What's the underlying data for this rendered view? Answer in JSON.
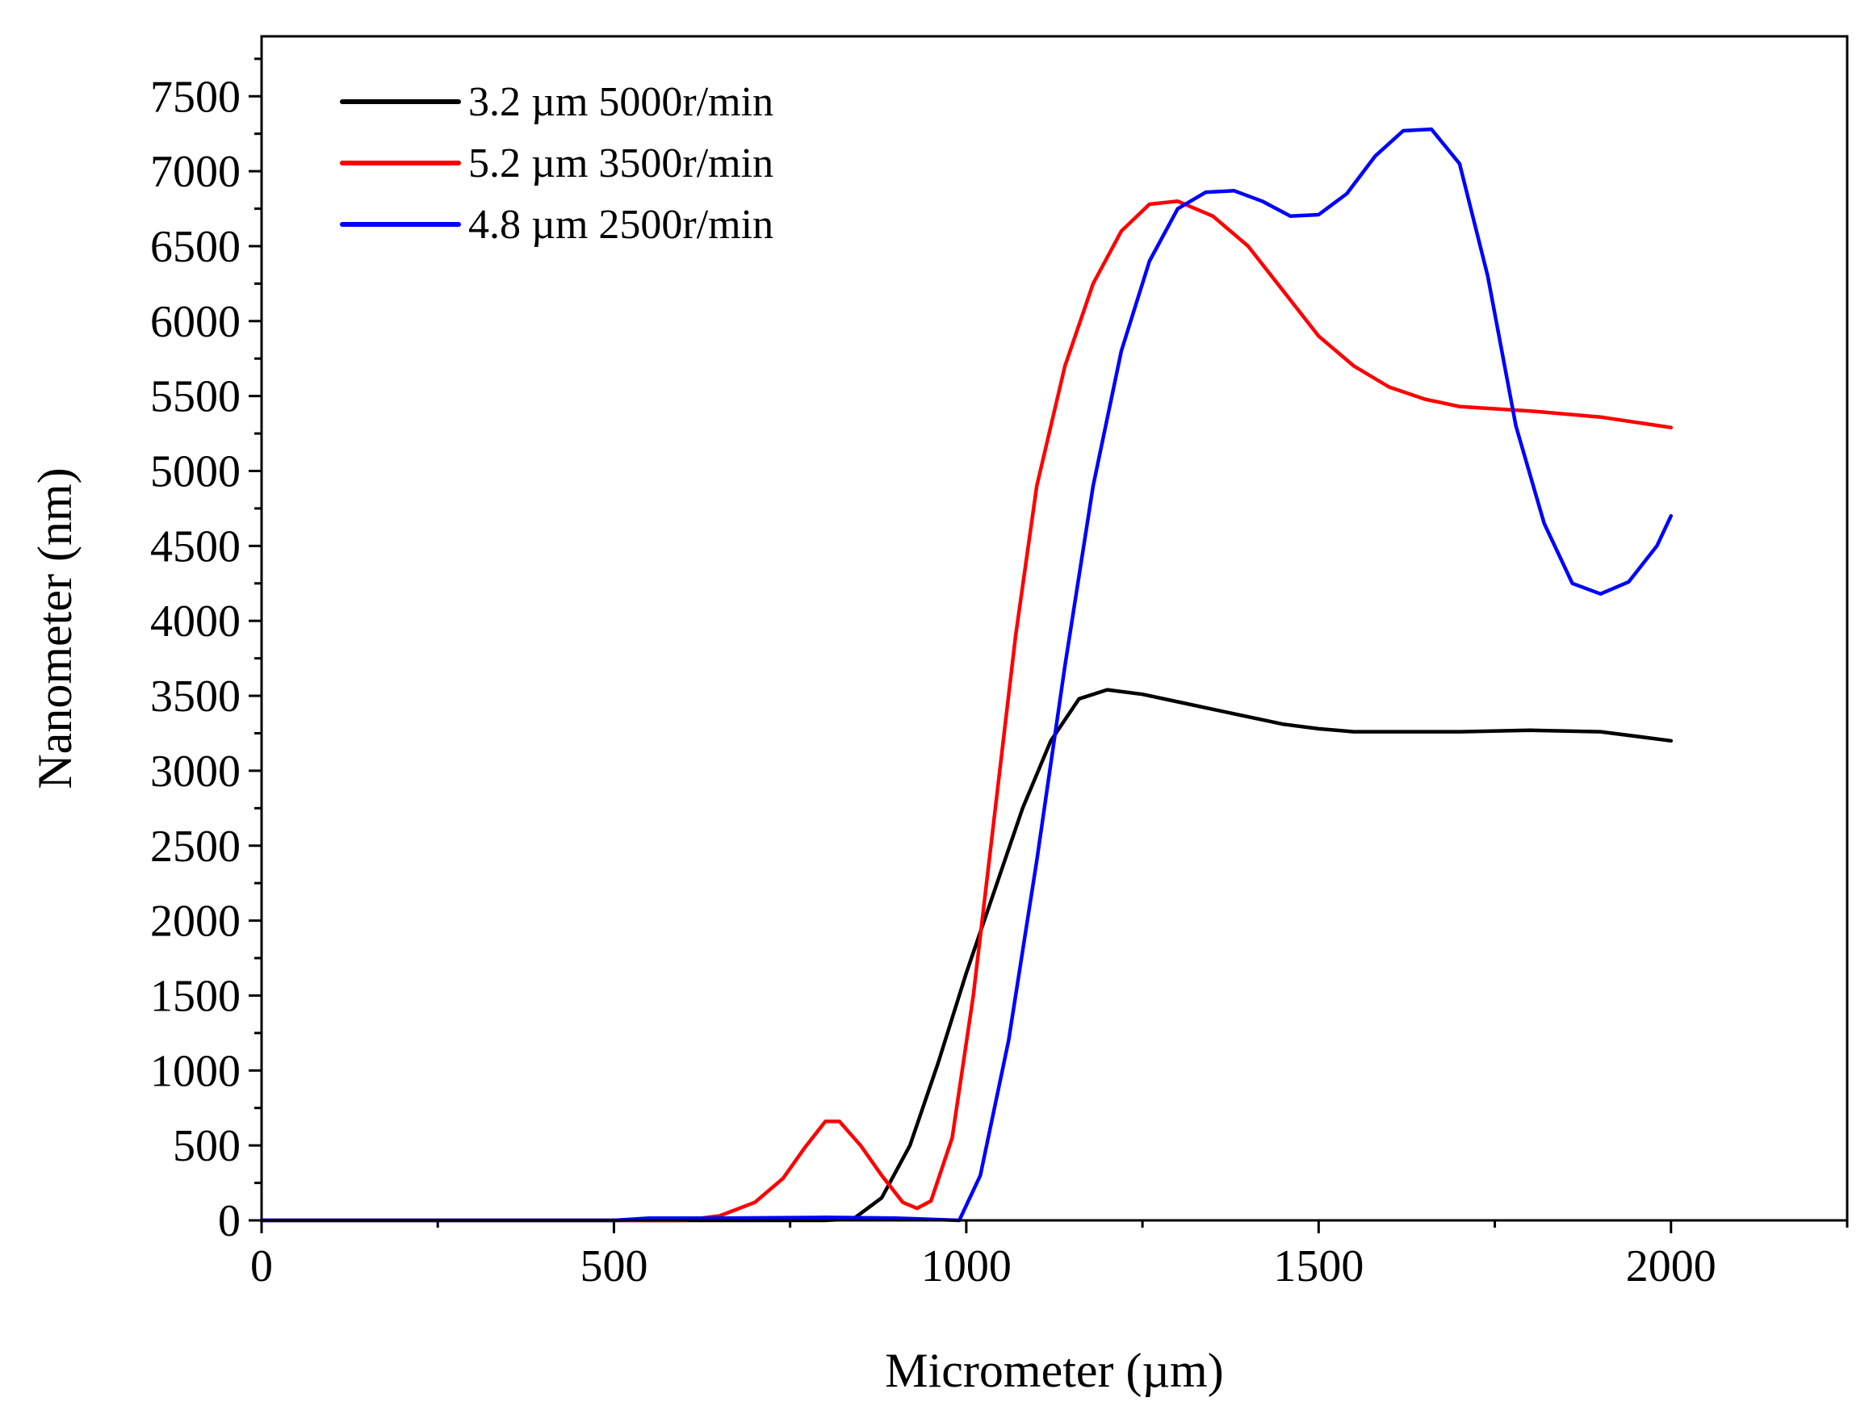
{
  "chart_data": {
    "type": "line",
    "title": "",
    "xlabel": "Micrometer (µm)",
    "ylabel": "Nanometer (nm)",
    "xlim": [
      0,
      2250
    ],
    "ylim": [
      0,
      7900
    ],
    "x_ticks": [
      0,
      500,
      1000,
      1500,
      2000
    ],
    "x_tick_labels": [
      "0",
      "500",
      "1000",
      "1500",
      "2000"
    ],
    "y_ticks": [
      0,
      500,
      1000,
      1500,
      2000,
      2500,
      3000,
      3500,
      4000,
      4500,
      5000,
      5500,
      6000,
      6500,
      7000,
      7500
    ],
    "y_tick_labels": [
      "0",
      "500",
      "1000",
      "1500",
      "2000",
      "2500",
      "3000",
      "3500",
      "4000",
      "4500",
      "5000",
      "5500",
      "6000",
      "6500",
      "7000",
      "7500"
    ],
    "grid": false,
    "legend_position": "top-left",
    "series": [
      {
        "name": "3.2 µm 5000r/min",
        "color": "#000000",
        "points": [
          [
            0,
            0
          ],
          [
            600,
            0
          ],
          [
            800,
            0
          ],
          [
            840,
            10
          ],
          [
            880,
            150
          ],
          [
            920,
            500
          ],
          [
            960,
            1050
          ],
          [
            1000,
            1650
          ],
          [
            1040,
            2200
          ],
          [
            1080,
            2750
          ],
          [
            1120,
            3200
          ],
          [
            1160,
            3480
          ],
          [
            1200,
            3540
          ],
          [
            1250,
            3510
          ],
          [
            1300,
            3460
          ],
          [
            1350,
            3410
          ],
          [
            1400,
            3360
          ],
          [
            1450,
            3310
          ],
          [
            1500,
            3280
          ],
          [
            1550,
            3260
          ],
          [
            1600,
            3260
          ],
          [
            1700,
            3260
          ],
          [
            1800,
            3270
          ],
          [
            1900,
            3260
          ],
          [
            2000,
            3200
          ]
        ]
      },
      {
        "name": "5.2 µm 3500r/min",
        "color": "#ff0000",
        "points": [
          [
            0,
            0
          ],
          [
            600,
            0
          ],
          [
            650,
            30
          ],
          [
            700,
            120
          ],
          [
            740,
            280
          ],
          [
            770,
            480
          ],
          [
            800,
            660
          ],
          [
            820,
            660
          ],
          [
            850,
            500
          ],
          [
            880,
            300
          ],
          [
            910,
            120
          ],
          [
            930,
            80
          ],
          [
            950,
            130
          ],
          [
            980,
            550
          ],
          [
            1010,
            1500
          ],
          [
            1040,
            2700
          ],
          [
            1070,
            3900
          ],
          [
            1100,
            4900
          ],
          [
            1140,
            5700
          ],
          [
            1180,
            6250
          ],
          [
            1220,
            6600
          ],
          [
            1260,
            6780
          ],
          [
            1300,
            6800
          ],
          [
            1350,
            6700
          ],
          [
            1400,
            6500
          ],
          [
            1450,
            6200
          ],
          [
            1500,
            5900
          ],
          [
            1550,
            5700
          ],
          [
            1600,
            5560
          ],
          [
            1650,
            5480
          ],
          [
            1700,
            5430
          ],
          [
            1800,
            5400
          ],
          [
            1900,
            5360
          ],
          [
            2000,
            5290
          ]
        ]
      },
      {
        "name": "4.8 µm 2500r/min",
        "color": "#0000ff",
        "points": [
          [
            0,
            0
          ],
          [
            500,
            0
          ],
          [
            550,
            15
          ],
          [
            650,
            15
          ],
          [
            800,
            20
          ],
          [
            900,
            15
          ],
          [
            990,
            0
          ],
          [
            1020,
            300
          ],
          [
            1060,
            1200
          ],
          [
            1100,
            2400
          ],
          [
            1140,
            3700
          ],
          [
            1180,
            4900
          ],
          [
            1220,
            5800
          ],
          [
            1260,
            6400
          ],
          [
            1300,
            6750
          ],
          [
            1340,
            6860
          ],
          [
            1380,
            6870
          ],
          [
            1420,
            6800
          ],
          [
            1460,
            6700
          ],
          [
            1500,
            6710
          ],
          [
            1540,
            6850
          ],
          [
            1580,
            7100
          ],
          [
            1620,
            7270
          ],
          [
            1660,
            7280
          ],
          [
            1700,
            7050
          ],
          [
            1740,
            6300
          ],
          [
            1780,
            5300
          ],
          [
            1820,
            4650
          ],
          [
            1860,
            4250
          ],
          [
            1900,
            4180
          ],
          [
            1940,
            4260
          ],
          [
            1980,
            4500
          ],
          [
            2000,
            4700
          ]
        ]
      }
    ]
  }
}
